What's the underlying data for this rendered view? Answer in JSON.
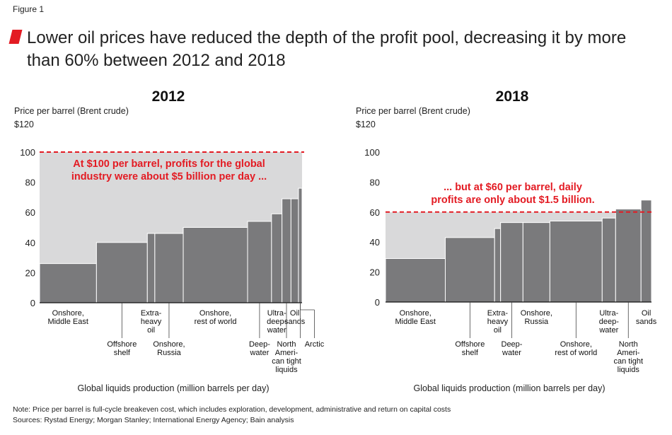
{
  "figure_label": "Figure 1",
  "headline": "Lower oil prices have reduced the depth of the profit pool, decreasing it by more than 60% between 2012 and 2018",
  "note": "Note: Price per barrel is full-cycle breakeven cost, which includes exploration, development, administrative and return on capital costs",
  "sources": "Sources: Rystad Energy; Morgan Stanley; International Energy Agency; Bain analysis",
  "colors": {
    "bar": "#7a7a7c",
    "pool": "#d9d9da",
    "accent": "#e31b23"
  },
  "chart_data": [
    {
      "type": "bar",
      "title": "2012",
      "ylabel": "Price per barrel (Brent crude)",
      "yunit_label": "$120",
      "xlabel": "Global liquids production (million barrels per day)",
      "ylim": [
        0,
        120
      ],
      "yticks": [
        "0",
        "20",
        "40",
        "60",
        "80",
        "100"
      ],
      "ytick_values": [
        0,
        20,
        40,
        60,
        80,
        100
      ],
      "price_line": 100,
      "annotation": [
        "At $100 per barrel, profits for the global",
        "industry were about $5 billion per day ..."
      ],
      "segments": [
        {
          "name": "Onshore, Middle East",
          "lines": [
            "Onshore,",
            "Middle East"
          ],
          "width": 19,
          "cost": 26,
          "label_row": "top"
        },
        {
          "name": "Offshore shelf",
          "lines": [
            "Offshore",
            "shelf"
          ],
          "width": 17,
          "cost": 40,
          "label_row": "low"
        },
        {
          "name": "Extra-heavy oil",
          "lines": [
            "Extra-",
            "heavy",
            "oil"
          ],
          "width": 2.5,
          "cost": 46,
          "label_row": "top"
        },
        {
          "name": "Onshore, Russia",
          "lines": [
            "Onshore,",
            "Russia"
          ],
          "width": 9.5,
          "cost": 46,
          "label_row": "low"
        },
        {
          "name": "Onshore, rest of world",
          "lines": [
            "Onshore,",
            "rest of world"
          ],
          "width": 21.5,
          "cost": 50,
          "label_row": "top"
        },
        {
          "name": "Deepwater",
          "lines": [
            "Deep-",
            "water"
          ],
          "width": 8,
          "cost": 54,
          "label_row": "low"
        },
        {
          "name": "Ultra-deepwater",
          "lines": [
            "Ultra-",
            "deep-",
            "water"
          ],
          "width": 3.5,
          "cost": 59,
          "label_row": "top"
        },
        {
          "name": "North American tight liquids",
          "lines": [
            "North",
            "Ameri-",
            "can tight",
            "liquids"
          ],
          "width": 3,
          "cost": 69,
          "label_row": "low"
        },
        {
          "name": "Oil sands",
          "lines": [
            "Oil",
            "sands"
          ],
          "width": 2.5,
          "cost": 69,
          "label_row": "top"
        },
        {
          "name": "Arctic",
          "lines": [
            "Arctic"
          ],
          "width": 1.2,
          "cost": 76,
          "label_row": "low"
        }
      ]
    },
    {
      "type": "bar",
      "title": "2018",
      "ylabel": "Price per barrel (Brent crude)",
      "yunit_label": "$120",
      "xlabel": "Global liquids production (million barrels per day)",
      "ylim": [
        0,
        120
      ],
      "yticks": [
        "0",
        "20",
        "40",
        "60",
        "80",
        "100"
      ],
      "ytick_values": [
        0,
        20,
        40,
        60,
        80,
        100
      ],
      "price_line": 60,
      "annotation": [
        "... but at $60 per barrel, daily",
        "profits are only about $1.5 billion."
      ],
      "segments": [
        {
          "name": "Onshore, Middle East",
          "lines": [
            "Onshore,",
            "Middle East"
          ],
          "width": 20,
          "cost": 29,
          "label_row": "top"
        },
        {
          "name": "Offshore shelf",
          "lines": [
            "Offshore",
            "shelf"
          ],
          "width": 16.5,
          "cost": 43,
          "label_row": "low"
        },
        {
          "name": "Extra-heavy oil",
          "lines": [
            "Extra-",
            "heavy",
            "oil"
          ],
          "width": 2,
          "cost": 49,
          "label_row": "top"
        },
        {
          "name": "Deepwater",
          "lines": [
            "Deep-",
            "water"
          ],
          "width": 7.5,
          "cost": 53,
          "label_row": "low"
        },
        {
          "name": "Onshore, Russia",
          "lines": [
            "Onshore,",
            "Russia"
          ],
          "width": 9,
          "cost": 53,
          "label_row": "top"
        },
        {
          "name": "Onshore, rest of world",
          "lines": [
            "Onshore,",
            "rest of world"
          ],
          "width": 17.5,
          "cost": 54,
          "label_row": "low"
        },
        {
          "name": "Ultra-deepwater",
          "lines": [
            "Ultra-",
            "deep-",
            "water"
          ],
          "width": 4.5,
          "cost": 56,
          "label_row": "top"
        },
        {
          "name": "North American tight liquids",
          "lines": [
            "North",
            "Ameri-",
            "can tight",
            "liquids"
          ],
          "width": 8.5,
          "cost": 62,
          "label_row": "low"
        },
        {
          "name": "Oil sands",
          "lines": [
            "Oil",
            "sands"
          ],
          "width": 3.5,
          "cost": 68,
          "label_row": "top"
        }
      ]
    }
  ]
}
